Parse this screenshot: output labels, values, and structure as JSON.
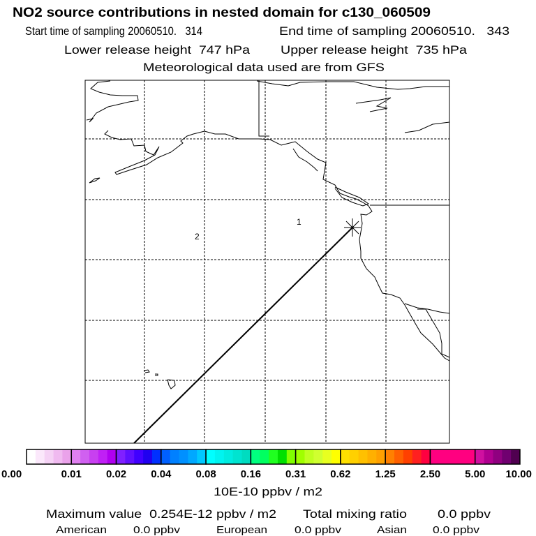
{
  "header": {
    "title": "NO2 source contributions in nested domain for c130_060509",
    "start_time": "Start time of sampling 20060510.   314",
    "end_time": "End time of sampling 20060510.   343",
    "lower_release": "Lower release height  747 hPa",
    "upper_release": "Upper release height  735 hPa",
    "met_data": "Meteorological data used are from GFS"
  },
  "chart_data": {
    "type": "map",
    "title": "NO2 source contributions in nested domain for c130_060509",
    "grid": true,
    "map_labels": [
      "1",
      "2"
    ],
    "source_marker": "star",
    "trajectory": "straight line from release point toward southwest",
    "colorbar": {
      "ticks": [
        "0.00",
        "0.01",
        "0.02",
        "0.04",
        "0.08",
        "0.16",
        "0.31",
        "0.62",
        "1.25",
        "2.50",
        "5.00",
        "10.00"
      ],
      "units": "10E-10 ppbv / m2",
      "colors": [
        [
          "#ffffff",
          "#fbe8fb",
          "#f5d2f5",
          "#f0baf0",
          "#eaa2ea"
        ],
        [
          "#e080f0",
          "#d060f0",
          "#c840f0",
          "#c020f5",
          "#b000f0"
        ],
        [
          "#8020ff",
          "#6010ff",
          "#4000ff",
          "#2000f0",
          "#0030ff"
        ],
        [
          "#0060ff",
          "#0080ff",
          "#0090ff",
          "#00a8ff",
          "#00c8ff"
        ],
        [
          "#00ffff",
          "#00f4f0",
          "#00ece0",
          "#00e4d0",
          "#00dcc0"
        ],
        [
          "#00ff80",
          "#00ff60",
          "#20ff20",
          "#00e000",
          "#80ff00"
        ],
        [
          "#a0ff00",
          "#c0ff20",
          "#d0ff30",
          "#e8ff20",
          "#ffff00"
        ],
        [
          "#ffe000",
          "#ffd000",
          "#ffc000",
          "#ffb000",
          "#ffa000"
        ],
        [
          "#ff8000",
          "#ff6000",
          "#ff4000",
          "#ff2020",
          "#ff0040"
        ],
        [
          "#ff0080",
          "#ff0080",
          "#ff0080",
          "#ff0080",
          "#ff0080"
        ],
        [
          "#d010a0",
          "#b00090",
          "#900080",
          "#700070",
          "#500050"
        ]
      ]
    }
  },
  "summary": {
    "max_value": "Maximum value  0.254E-12 ppbv / m2",
    "total_label": "Total mixing ratio",
    "total_value": "0.0 ppbv",
    "american_label": "American",
    "american_value": "0.0 ppbv",
    "european_label": "European",
    "european_value": "0.0 ppbv",
    "asian_label": "Asian",
    "asian_value": "0.0 ppbv"
  }
}
